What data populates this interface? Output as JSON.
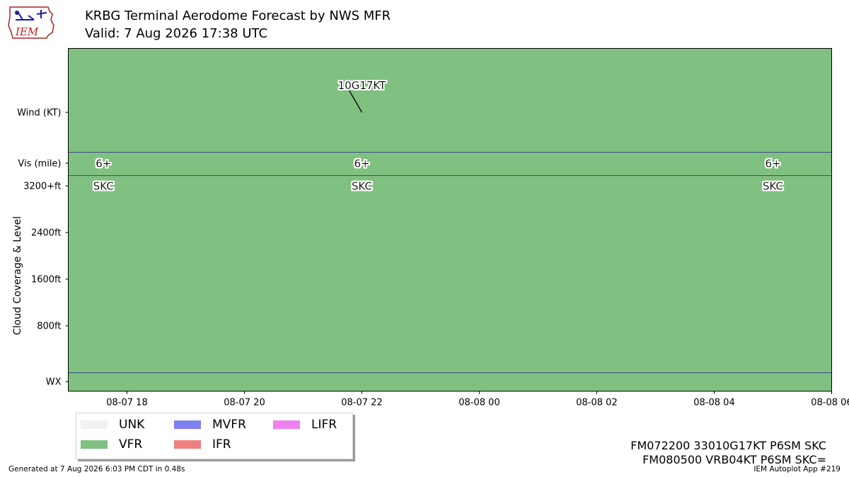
{
  "header": {
    "title": "KRBG Terminal Aerodome Forecast by NWS MFR",
    "subtitle": "Valid: 7 Aug 2026 17:38 UTC",
    "logo_text": "IEM"
  },
  "chart_data": {
    "type": "timeline",
    "colors": {
      "UNK": "#f2f2f2",
      "VFR": "#80c080",
      "MVFR": "#8080f0",
      "IFR": "#f08080",
      "LIFR": "#f080f0"
    },
    "x_range": [
      "2026-08-07 17:00",
      "2026-08-08 06:00"
    ],
    "x_ticks": [
      {
        "t": 18,
        "label": "08-07 18"
      },
      {
        "t": 20,
        "label": "08-07 20"
      },
      {
        "t": 22,
        "label": "08-07 22"
      },
      {
        "t": 24,
        "label": "08-08 00"
      },
      {
        "t": 26,
        "label": "08-08 02"
      },
      {
        "t": 28,
        "label": "08-08 04"
      },
      {
        "t": 30,
        "label": "08-08 06"
      }
    ],
    "y_labels": {
      "wind": "Wind (KT)",
      "vis": "Vis (mile)",
      "wx": "WX",
      "cloud_axis": "Cloud Coverage & Level"
    },
    "cloud_ticks": [
      "3200+ft",
      "2400ft",
      "1600ft",
      "800ft"
    ],
    "category_periods": [
      {
        "start": 17.0,
        "end": 30.0,
        "category": "VFR"
      }
    ],
    "wind_barbs": [
      {
        "t": 22.0,
        "label": "10G17KT",
        "direction": 330,
        "speed": 10
      }
    ],
    "visibility": [
      {
        "t": 17.6,
        "label": "6+"
      },
      {
        "t": 22.0,
        "label": "6+"
      },
      {
        "t": 29.0,
        "label": "6+"
      }
    ],
    "clouds": [
      {
        "t": 17.6,
        "label": "SKC"
      },
      {
        "t": 22.0,
        "label": "SKC"
      },
      {
        "t": 29.0,
        "label": "SKC"
      }
    ]
  },
  "legend": [
    {
      "label": "UNK",
      "color": "#f2f2f2"
    },
    {
      "label": "VFR",
      "color": "#80c080"
    },
    {
      "label": "MVFR",
      "color": "#8080f0"
    },
    {
      "label": "IFR",
      "color": "#f08080"
    },
    {
      "label": "LIFR",
      "color": "#f080f0"
    }
  ],
  "taf_text": {
    "line1": "FM072200 33010G17KT P6SM SKC",
    "line2": "FM080500 VRB04KT P6SM SKC="
  },
  "footer": {
    "generated": "Generated at 7 Aug 2026 6:03 PM CDT in 0.48s",
    "app": "IEM Autoplot App #219"
  }
}
